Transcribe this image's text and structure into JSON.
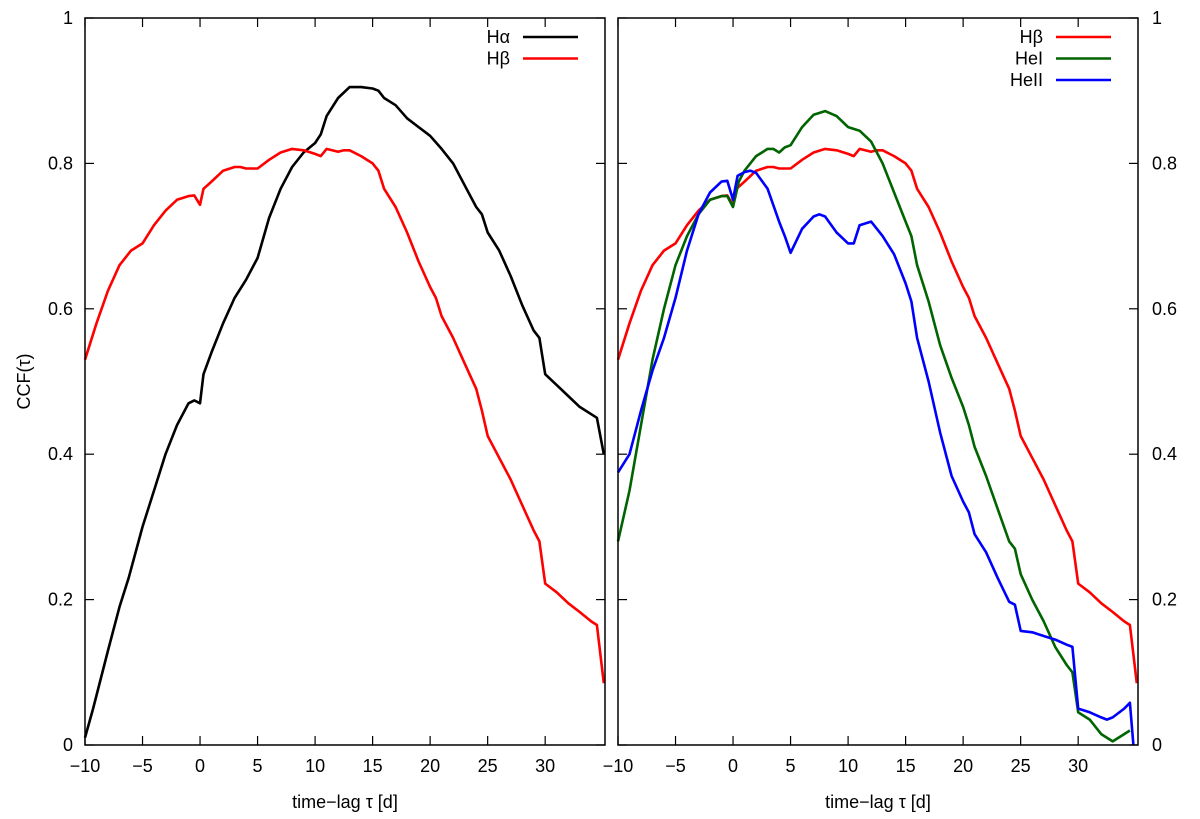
{
  "chart_data": [
    {
      "type": "line",
      "panel": "left",
      "xlabel": "time−lag τ [d]",
      "ylabel": "CCF(τ)",
      "xlim": [
        -10,
        35.2
      ],
      "ylim": [
        0,
        1
      ],
      "xticks": [
        -10,
        -5,
        0,
        5,
        10,
        15,
        20,
        25,
        30
      ],
      "xtick_labels": [
        "−10",
        "−5",
        "0",
        "5",
        "10",
        "15",
        "20",
        "25",
        "30"
      ],
      "yticks": [
        0,
        0.2,
        0.4,
        0.6,
        0.8,
        1
      ],
      "ytick_labels": [
        "0",
        "0.2",
        "0.4",
        "0.6",
        "0.8",
        "1"
      ],
      "ytick_side": "left",
      "legend": "top-right",
      "grid": false,
      "series": [
        {
          "name": "Hα",
          "color": "#000000",
          "x": [
            -10,
            -9.3,
            -8,
            -7,
            -6.2,
            -5,
            -4,
            -3,
            -2,
            -1,
            -0.5,
            0,
            0.3,
            1,
            2,
            3,
            4,
            5,
            6,
            7,
            8,
            9,
            10,
            10.5,
            11,
            12,
            13,
            14,
            15,
            15.5,
            16,
            17,
            18,
            19,
            20,
            21,
            22,
            23,
            24,
            24.5,
            25,
            26,
            27,
            28,
            29,
            29.5,
            30,
            31,
            32,
            33,
            34,
            34.5,
            35.1
          ],
          "y": [
            0.01,
            0.05,
            0.13,
            0.19,
            0.23,
            0.3,
            0.35,
            0.4,
            0.44,
            0.47,
            0.474,
            0.47,
            0.51,
            0.54,
            0.58,
            0.615,
            0.64,
            0.67,
            0.725,
            0.765,
            0.795,
            0.815,
            0.828,
            0.84,
            0.865,
            0.89,
            0.905,
            0.905,
            0.903,
            0.9,
            0.89,
            0.88,
            0.862,
            0.85,
            0.838,
            0.82,
            0.8,
            0.77,
            0.74,
            0.73,
            0.705,
            0.68,
            0.645,
            0.605,
            0.57,
            0.56,
            0.51,
            0.495,
            0.48,
            0.465,
            0.455,
            0.45,
            0.4
          ]
        },
        {
          "name": "Hβ",
          "color": "#ff0000",
          "x": [
            -10,
            -9,
            -8,
            -7,
            -6,
            -5,
            -4,
            -3,
            -2,
            -1,
            -0.5,
            0,
            0.3,
            1,
            2,
            3,
            3.5,
            4,
            5,
            6,
            7,
            8,
            9,
            10,
            10.5,
            11,
            12,
            12.5,
            13,
            14,
            15,
            15.5,
            16,
            17,
            18,
            19,
            20,
            20.5,
            21,
            22,
            23,
            24,
            24.5,
            25,
            26,
            27,
            28,
            29,
            29.5,
            30,
            31,
            32,
            33,
            34,
            34.5,
            35.1
          ],
          "y": [
            0.53,
            0.58,
            0.625,
            0.66,
            0.68,
            0.69,
            0.715,
            0.735,
            0.75,
            0.755,
            0.756,
            0.743,
            0.765,
            0.775,
            0.79,
            0.795,
            0.795,
            0.793,
            0.793,
            0.805,
            0.815,
            0.82,
            0.818,
            0.813,
            0.81,
            0.82,
            0.816,
            0.818,
            0.818,
            0.81,
            0.8,
            0.79,
            0.765,
            0.74,
            0.705,
            0.665,
            0.63,
            0.615,
            0.59,
            0.56,
            0.525,
            0.49,
            0.46,
            0.425,
            0.395,
            0.365,
            0.33,
            0.295,
            0.28,
            0.222,
            0.21,
            0.195,
            0.183,
            0.17,
            0.165,
            0.085
          ]
        }
      ]
    },
    {
      "type": "line",
      "panel": "right",
      "xlabel": "time−lag τ [d]",
      "xlim": [
        -10,
        35.2
      ],
      "ylim": [
        0,
        1
      ],
      "xticks": [
        -10,
        -5,
        0,
        5,
        10,
        15,
        20,
        25,
        30
      ],
      "xtick_labels": [
        "−10",
        "−5",
        "0",
        "5",
        "10",
        "15",
        "20",
        "25",
        "30"
      ],
      "yticks": [
        0,
        0.2,
        0.4,
        0.6,
        0.8,
        1
      ],
      "ytick_labels": [
        "0",
        "0.2",
        "0.4",
        "0.6",
        "0.8",
        "1"
      ],
      "ytick_side": "right",
      "legend": "top-right",
      "grid": false,
      "series": [
        {
          "name": "Hβ",
          "color": "#ff0000",
          "x": [
            -10,
            -9,
            -8,
            -7,
            -6,
            -5,
            -4,
            -3,
            -2,
            -1,
            -0.5,
            0,
            0.3,
            1,
            2,
            3,
            3.5,
            4,
            5,
            6,
            7,
            8,
            9,
            10,
            10.5,
            11,
            12,
            12.5,
            13,
            14,
            15,
            15.5,
            16,
            17,
            18,
            19,
            20,
            20.5,
            21,
            22,
            23,
            24,
            24.5,
            25,
            26,
            27,
            28,
            29,
            29.5,
            30,
            31,
            32,
            33,
            34,
            34.5,
            35.1
          ],
          "y": [
            0.53,
            0.58,
            0.625,
            0.66,
            0.68,
            0.69,
            0.715,
            0.735,
            0.75,
            0.755,
            0.756,
            0.743,
            0.765,
            0.775,
            0.79,
            0.795,
            0.795,
            0.793,
            0.793,
            0.805,
            0.815,
            0.82,
            0.818,
            0.813,
            0.81,
            0.82,
            0.816,
            0.818,
            0.818,
            0.81,
            0.8,
            0.79,
            0.765,
            0.74,
            0.705,
            0.665,
            0.63,
            0.615,
            0.59,
            0.56,
            0.525,
            0.49,
            0.46,
            0.425,
            0.395,
            0.365,
            0.33,
            0.295,
            0.28,
            0.222,
            0.21,
            0.195,
            0.183,
            0.17,
            0.165,
            0.085
          ]
        },
        {
          "name": "HeI",
          "color": "#006400",
          "x": [
            -10,
            -9,
            -8,
            -7,
            -6,
            -5,
            -4,
            -3,
            -2,
            -1,
            -0.5,
            0,
            0.5,
            1,
            2,
            3,
            3.5,
            4,
            4.5,
            5,
            6,
            7,
            8,
            9,
            10,
            11,
            12,
            13,
            14,
            15,
            15.5,
            16,
            17,
            18,
            19,
            20,
            20.5,
            21,
            22,
            23,
            24,
            24.5,
            25,
            26,
            27,
            28,
            29,
            29.5,
            30,
            31,
            32,
            33,
            34,
            34.5
          ],
          "y": [
            0.28,
            0.35,
            0.44,
            0.53,
            0.6,
            0.66,
            0.7,
            0.73,
            0.75,
            0.755,
            0.755,
            0.74,
            0.775,
            0.79,
            0.81,
            0.82,
            0.82,
            0.815,
            0.822,
            0.825,
            0.85,
            0.867,
            0.872,
            0.865,
            0.85,
            0.845,
            0.83,
            0.8,
            0.76,
            0.72,
            0.7,
            0.66,
            0.61,
            0.55,
            0.505,
            0.465,
            0.44,
            0.41,
            0.37,
            0.325,
            0.28,
            0.27,
            0.235,
            0.2,
            0.17,
            0.135,
            0.11,
            0.1,
            0.045,
            0.035,
            0.015,
            0.005,
            0.015,
            0.02
          ]
        },
        {
          "name": "HeII",
          "color": "#0000ff",
          "x": [
            -10,
            -9,
            -8,
            -7,
            -6,
            -5,
            -4,
            -3,
            -2,
            -1,
            -0.5,
            0,
            0.4,
            1,
            1.5,
            2,
            3,
            4,
            4.5,
            5,
            6,
            7,
            7.5,
            8,
            9,
            10,
            10.5,
            11,
            12,
            13,
            14,
            15,
            15.5,
            16,
            17,
            18,
            19,
            20,
            20.5,
            21,
            22,
            23,
            24,
            24.5,
            25,
            26,
            27,
            28,
            29,
            29.5,
            30,
            31,
            32,
            32.5,
            33,
            34,
            34.5,
            34.8
          ],
          "y": [
            0.375,
            0.4,
            0.46,
            0.515,
            0.56,
            0.615,
            0.68,
            0.73,
            0.76,
            0.775,
            0.776,
            0.75,
            0.783,
            0.788,
            0.79,
            0.787,
            0.765,
            0.72,
            0.7,
            0.677,
            0.71,
            0.727,
            0.73,
            0.727,
            0.705,
            0.69,
            0.69,
            0.715,
            0.72,
            0.7,
            0.675,
            0.635,
            0.61,
            0.56,
            0.5,
            0.43,
            0.37,
            0.335,
            0.32,
            0.29,
            0.265,
            0.23,
            0.197,
            0.193,
            0.157,
            0.155,
            0.15,
            0.145,
            0.138,
            0.135,
            0.05,
            0.045,
            0.038,
            0.035,
            0.038,
            0.05,
            0.058,
            0.0
          ]
        }
      ]
    }
  ]
}
